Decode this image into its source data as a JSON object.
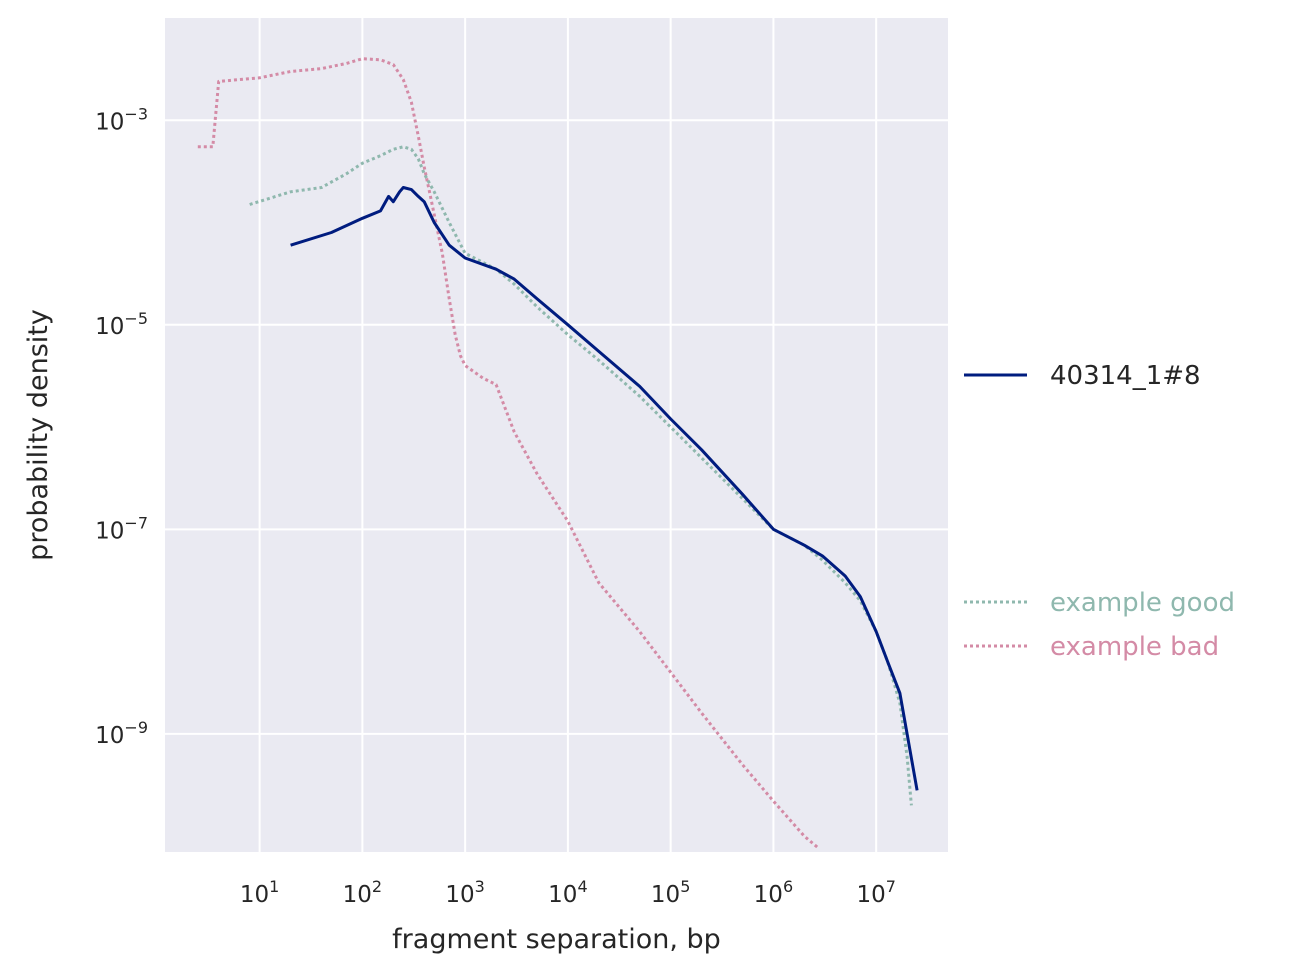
{
  "chart_data": {
    "type": "line",
    "title": "",
    "xlabel": "fragment separation, bp",
    "ylabel": "probability density",
    "xscale": "log",
    "yscale": "log",
    "xlim": [
      1.2,
      50000000
    ],
    "ylim": [
      7e-11,
      0.01
    ],
    "grid": true,
    "background": "#eaeaf2",
    "legend_position": "right",
    "x_ticks": [
      {
        "base": "10",
        "exp": "1",
        "value": 10
      },
      {
        "base": "10",
        "exp": "2",
        "value": 100
      },
      {
        "base": "10",
        "exp": "3",
        "value": 1000
      },
      {
        "base": "10",
        "exp": "4",
        "value": 10000
      },
      {
        "base": "10",
        "exp": "5",
        "value": 100000
      },
      {
        "base": "10",
        "exp": "6",
        "value": 1000000
      },
      {
        "base": "10",
        "exp": "7",
        "value": 10000000
      }
    ],
    "y_ticks": [
      {
        "base": "10",
        "exp": "−3",
        "value": 0.001
      },
      {
        "base": "10",
        "exp": "−5",
        "value": 1e-05
      },
      {
        "base": "10",
        "exp": "−7",
        "value": 1e-07
      },
      {
        "base": "10",
        "exp": "−9",
        "value": 1e-09
      }
    ],
    "series": [
      {
        "name": "40314_1#8",
        "color": "#001c7f",
        "style": "solid",
        "x": [
          20,
          50,
          100,
          150,
          180,
          200,
          230,
          250,
          300,
          350,
          400,
          500,
          700,
          1000,
          2000,
          3000,
          5000,
          10000,
          20000,
          50000,
          100000,
          200000,
          500000,
          1000000,
          2000000,
          3000000,
          5000000,
          7000000,
          10000000,
          13000000,
          17000000,
          20000000,
          25000000
        ],
        "y": [
          6e-05,
          8e-05,
          0.00011,
          0.00013,
          0.00018,
          0.00016,
          0.0002,
          0.00022,
          0.00021,
          0.00018,
          0.00016,
          0.0001,
          6e-05,
          4.5e-05,
          3.5e-05,
          2.8e-05,
          1.8e-05,
          1e-05,
          5.5e-06,
          2.5e-06,
          1.2e-06,
          6e-07,
          2.2e-07,
          1e-07,
          7e-08,
          5.5e-08,
          3.5e-08,
          2.2e-08,
          1e-08,
          5e-09,
          2.5e-09,
          1e-09,
          2.8e-10
        ]
      },
      {
        "name": "example good",
        "color": "#8fb8ae",
        "style": "dotted",
        "x": [
          8,
          20,
          40,
          70,
          100,
          150,
          200,
          250,
          300,
          350,
          400,
          500,
          700,
          1000,
          2000,
          3000,
          5000,
          10000,
          20000,
          50000,
          100000,
          200000,
          500000,
          1000000,
          2000000,
          3000000,
          5000000,
          7000000,
          10000000,
          13000000,
          17000000,
          20000000,
          22000000
        ],
        "y": [
          0.00015,
          0.0002,
          0.00022,
          0.0003,
          0.00038,
          0.00045,
          0.00052,
          0.00055,
          0.00052,
          0.00042,
          0.0003,
          0.0002,
          0.0001,
          5e-05,
          3.5e-05,
          2.5e-05,
          1.5e-05,
          8e-06,
          4.5e-06,
          2e-06,
          1e-06,
          5e-07,
          2e-07,
          1e-07,
          7e-08,
          5e-08,
          3e-08,
          2e-08,
          1e-08,
          5e-09,
          2e-09,
          6e-10,
          2e-10
        ]
      },
      {
        "name": "example bad",
        "color": "#d48ba6",
        "style": "dotted",
        "x": [
          2.5,
          3.5,
          4,
          10,
          20,
          40,
          70,
          100,
          150,
          200,
          250,
          300,
          350,
          400,
          450,
          500,
          600,
          700,
          800,
          900,
          1000,
          1500,
          2000,
          3000,
          5000,
          10000,
          20000,
          50000,
          100000,
          200000,
          500000,
          1000000,
          2000000,
          2800000
        ],
        "y": [
          0.00055,
          0.00055,
          0.0024,
          0.0026,
          0.003,
          0.0032,
          0.0036,
          0.004,
          0.0039,
          0.0035,
          0.0025,
          0.0015,
          0.0007,
          0.00035,
          0.0002,
          0.00012,
          5e-05,
          1.8e-05,
          8e-06,
          5e-06,
          4e-06,
          3e-06,
          2.6e-06,
          9e-07,
          3.5e-07,
          1.2e-07,
          3e-08,
          1e-08,
          4e-09,
          1.6e-09,
          5e-10,
          2.2e-10,
          1e-10,
          7.5e-11
        ]
      }
    ]
  }
}
